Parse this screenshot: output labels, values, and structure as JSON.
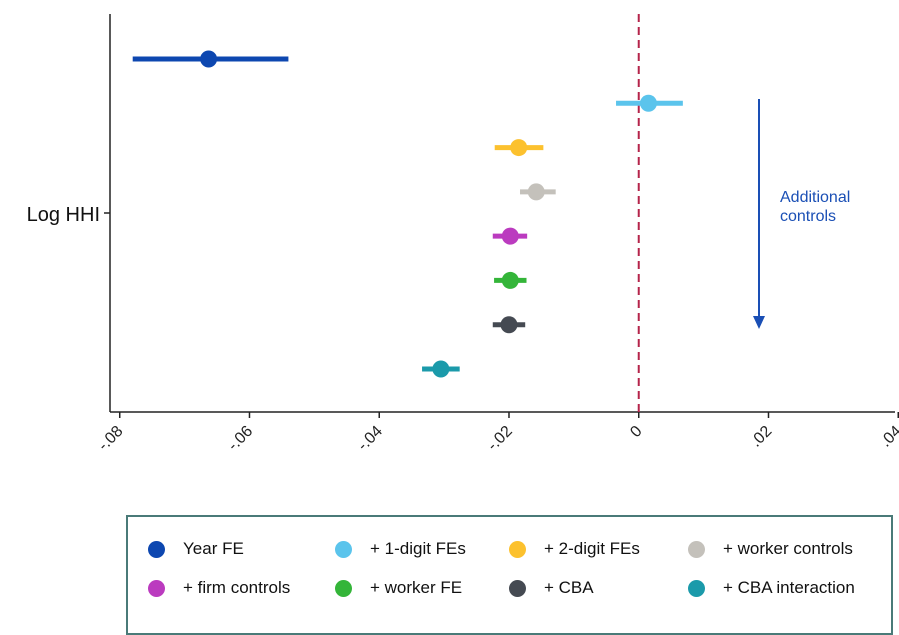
{
  "chart_data": {
    "type": "scatter",
    "subtype": "coefficient-plot",
    "category_label": "Log HHI",
    "x_ticks": [
      -0.08,
      -0.06,
      -0.04,
      -0.02,
      0,
      0.02,
      0.04
    ],
    "x_tick_labels": [
      "-.08",
      "-.06",
      "-.04",
      "-.02",
      "0",
      ".02",
      ".04"
    ],
    "xlim": [
      -0.0815,
      0.0395
    ],
    "reference_line": {
      "x": 0,
      "style": "dashed",
      "color": "#b5244a"
    },
    "annotation": {
      "text_lines": [
        "Additional",
        "controls"
      ],
      "color": "#1a4fb5"
    },
    "grid": false,
    "legend_position": "bottom",
    "series": [
      {
        "name": "Year FE",
        "estimate": -0.0663,
        "ci_low": -0.078,
        "ci_high": -0.054,
        "color": "#0d47b0"
      },
      {
        "name": "+ 1-digit FEs",
        "estimate": 0.0015,
        "ci_low": -0.0035,
        "ci_high": 0.0068,
        "color": "#5bc4ec"
      },
      {
        "name": "+ 2-digit FEs",
        "estimate": -0.0185,
        "ci_low": -0.0222,
        "ci_high": -0.0147,
        "color": "#fcc12e"
      },
      {
        "name": "+ worker controls",
        "estimate": -0.0158,
        "ci_low": -0.0183,
        "ci_high": -0.0128,
        "color": "#c4c1bb"
      },
      {
        "name": "+ firm controls",
        "estimate": -0.0198,
        "ci_low": -0.0225,
        "ci_high": -0.0172,
        "color": "#bb3bbf"
      },
      {
        "name": "+ worker FE",
        "estimate": -0.0198,
        "ci_low": -0.0223,
        "ci_high": -0.0173,
        "color": "#34b539"
      },
      {
        "name": "+ CBA",
        "estimate": -0.02,
        "ci_low": -0.0225,
        "ci_high": -0.0175,
        "color": "#454a52"
      },
      {
        "name": "+ CBA interaction",
        "estimate": -0.0305,
        "ci_low": -0.0334,
        "ci_high": -0.0276,
        "color": "#1b9aaa"
      }
    ]
  }
}
